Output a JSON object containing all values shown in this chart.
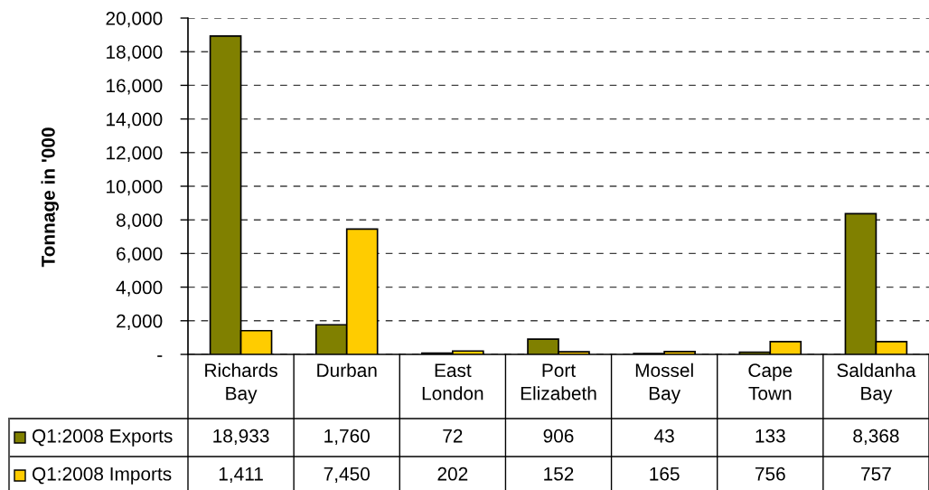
{
  "chart_data": {
    "type": "bar",
    "ylabel": "Tonnage in '000",
    "categories": [
      "Richards Bay",
      "Durban",
      "East London",
      "Port Elizabeth",
      "Mossel Bay",
      "Cape Town",
      "Saldanha Bay"
    ],
    "series": [
      {
        "name": "Q1:2008 Exports",
        "color": "#808000",
        "values": [
          18933,
          1760,
          72,
          906,
          43,
          133,
          8368
        ],
        "value_labels": [
          "18,933",
          "1,760",
          "72",
          "906",
          "43",
          "133",
          "8,368"
        ]
      },
      {
        "name": "Q1:2008 Imports",
        "color": "#ffcc00",
        "values": [
          1411,
          7450,
          202,
          152,
          165,
          756,
          757
        ],
        "value_labels": [
          "1,411",
          "7,450",
          "202",
          "152",
          "165",
          "756",
          "757"
        ]
      }
    ],
    "ylim": [
      0,
      20000
    ],
    "yticks": [
      {
        "value": 0,
        "label": "-"
      },
      {
        "value": 2000,
        "label": "2,000"
      },
      {
        "value": 4000,
        "label": "4,000"
      },
      {
        "value": 6000,
        "label": "6,000"
      },
      {
        "value": 8000,
        "label": "8,000"
      },
      {
        "value": 10000,
        "label": "10,000"
      },
      {
        "value": 12000,
        "label": "12,000"
      },
      {
        "value": 14000,
        "label": "14,000"
      },
      {
        "value": 16000,
        "label": "16,000"
      },
      {
        "value": 18000,
        "label": "18,000"
      },
      {
        "value": 20000,
        "label": "20,000"
      }
    ],
    "grid": "y",
    "legend": "bottom left"
  }
}
